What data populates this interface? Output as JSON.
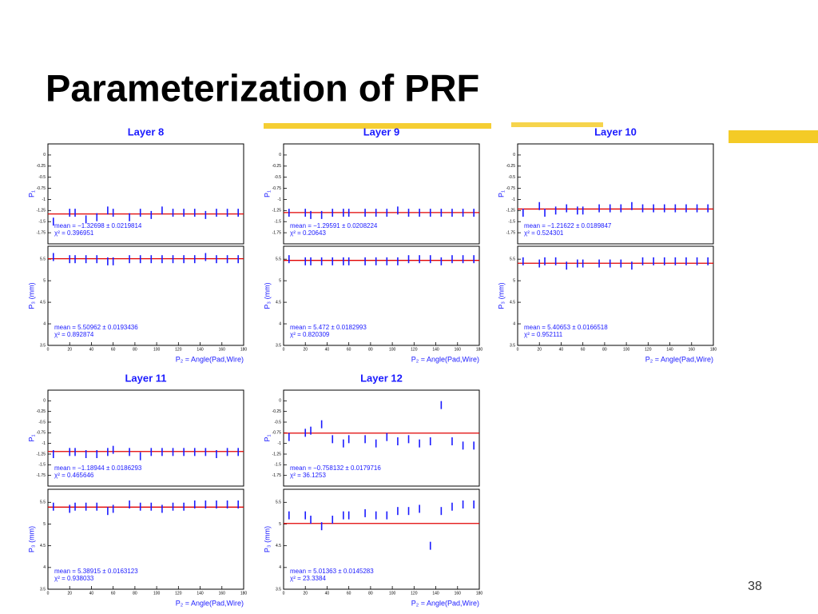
{
  "title": "Parameterization of PRF",
  "page_number": "38",
  "chart_data": [
    {
      "type": "scatter",
      "title": "Layer 8",
      "ylabel": "P₁",
      "annotations": [
        "mean = −1.32698 ± 0.0219814",
        "χ² = 0.396951"
      ],
      "fit_value": -1.32698,
      "fit_color": "#e00000",
      "color": "#1a1aff",
      "x": [
        5,
        20,
        25,
        35,
        45,
        55,
        60,
        75,
        85,
        95,
        105,
        115,
        125,
        135,
        145,
        155,
        165,
        175
      ],
      "values": [
        -1.5,
        -1.3,
        -1.3,
        -1.45,
        -1.4,
        -1.25,
        -1.3,
        -1.4,
        -1.3,
        -1.35,
        -1.25,
        -1.3,
        -1.3,
        -1.3,
        -1.35,
        -1.3,
        -1.3,
        -1.3
      ],
      "xlim": [
        0,
        180
      ],
      "ylim": [
        -2,
        0.25
      ],
      "yticks": [
        0,
        -0.25,
        -0.5,
        -0.75,
        -1,
        -1.25,
        -1.5,
        -1.75
      ]
    },
    {
      "type": "scatter",
      "ylabel": "P₃ (mm)",
      "xlabel": "P₂ = Angle(Pad,Wire)",
      "annotations": [
        "mean = 5.50962 ± 0.0193436",
        "χ² = 0.892874"
      ],
      "fit_value": 5.50962,
      "fit_color": "#e00000",
      "color": "#1a1aff",
      "x": [
        5,
        20,
        25,
        35,
        45,
        55,
        60,
        75,
        85,
        95,
        105,
        115,
        125,
        135,
        145,
        155,
        165,
        175
      ],
      "values": [
        5.55,
        5.5,
        5.5,
        5.5,
        5.5,
        5.45,
        5.45,
        5.5,
        5.5,
        5.5,
        5.5,
        5.5,
        5.5,
        5.5,
        5.55,
        5.5,
        5.5,
        5.5
      ],
      "xlim": [
        0,
        180
      ],
      "xticks": [
        0,
        20,
        40,
        60,
        80,
        100,
        120,
        140,
        160,
        180
      ],
      "ylim": [
        3.5,
        5.8
      ],
      "yticks": [
        5.5,
        5,
        4.5,
        4,
        3.5
      ]
    },
    {
      "type": "scatter",
      "title": "Layer 9",
      "ylabel": "P₁",
      "annotations": [
        "mean = −1.29591 ± 0.0208224",
        "χ² = 0.20643"
      ],
      "fit_value": -1.29591,
      "fit_color": "#e00000",
      "color": "#1a1aff",
      "x": [
        5,
        20,
        25,
        35,
        45,
        55,
        60,
        75,
        85,
        95,
        105,
        115,
        125,
        135,
        145,
        155,
        165,
        175
      ],
      "values": [
        -1.3,
        -1.3,
        -1.35,
        -1.35,
        -1.3,
        -1.3,
        -1.3,
        -1.3,
        -1.3,
        -1.3,
        -1.25,
        -1.3,
        -1.3,
        -1.3,
        -1.3,
        -1.3,
        -1.3,
        -1.3
      ],
      "xlim": [
        0,
        180
      ],
      "ylim": [
        -2,
        0.25
      ],
      "yticks": [
        0,
        -0.25,
        -0.5,
        -0.75,
        -1,
        -1.25,
        -1.5,
        -1.75
      ]
    },
    {
      "type": "scatter",
      "ylabel": "P₃ (mm)",
      "xlabel": "P₂ = Angle(Pad,Wire)",
      "annotations": [
        "mean = 5.472 ± 0.0182993",
        "χ² = 0.820309"
      ],
      "fit_value": 5.472,
      "fit_color": "#e00000",
      "color": "#1a1aff",
      "x": [
        5,
        20,
        25,
        35,
        45,
        55,
        60,
        75,
        85,
        95,
        105,
        115,
        125,
        135,
        145,
        155,
        165,
        175
      ],
      "values": [
        5.5,
        5.45,
        5.45,
        5.45,
        5.45,
        5.45,
        5.45,
        5.45,
        5.45,
        5.45,
        5.45,
        5.5,
        5.5,
        5.5,
        5.45,
        5.5,
        5.5,
        5.5
      ],
      "xlim": [
        0,
        180
      ],
      "xticks": [
        0,
        20,
        40,
        60,
        80,
        100,
        120,
        140,
        160,
        180
      ],
      "ylim": [
        3.5,
        5.8
      ],
      "yticks": [
        5.5,
        5,
        4.5,
        4,
        3.5
      ]
    },
    {
      "type": "scatter",
      "title": "Layer 10",
      "ylabel": "P₁",
      "annotations": [
        "mean = −1.21622 ± 0.0189847",
        "χ² = 0.524301"
      ],
      "fit_value": -1.21622,
      "fit_color": "#e00000",
      "color": "#1a1aff",
      "x": [
        5,
        20,
        25,
        35,
        45,
        55,
        60,
        75,
        85,
        95,
        105,
        115,
        125,
        135,
        145,
        155,
        165,
        175
      ],
      "values": [
        -1.3,
        -1.15,
        -1.3,
        -1.25,
        -1.2,
        -1.25,
        -1.25,
        -1.2,
        -1.2,
        -1.2,
        -1.15,
        -1.2,
        -1.2,
        -1.2,
        -1.2,
        -1.2,
        -1.2,
        -1.2
      ],
      "xlim": [
        0,
        180
      ],
      "ylim": [
        -2,
        0.25
      ],
      "yticks": [
        0,
        -0.25,
        -0.5,
        -0.75,
        -1,
        -1.25,
        -1.5,
        -1.75
      ]
    },
    {
      "type": "scatter",
      "ylabel": "P₃ (mm)",
      "xlabel": "P₂ = Angle(Pad,Wire)",
      "annotations": [
        "mean = 5.40653 ± 0.0166518",
        "χ² = 0.952111"
      ],
      "fit_value": 5.40653,
      "fit_color": "#e00000",
      "color": "#1a1aff",
      "x": [
        5,
        20,
        25,
        35,
        45,
        55,
        60,
        75,
        85,
        95,
        105,
        115,
        125,
        135,
        145,
        155,
        165,
        175
      ],
      "values": [
        5.45,
        5.4,
        5.45,
        5.45,
        5.35,
        5.4,
        5.4,
        5.4,
        5.4,
        5.4,
        5.35,
        5.45,
        5.45,
        5.45,
        5.45,
        5.45,
        5.45,
        5.45
      ],
      "xlim": [
        0,
        180
      ],
      "xticks": [
        0,
        20,
        40,
        60,
        80,
        100,
        120,
        140,
        160,
        180
      ],
      "ylim": [
        3.5,
        5.8
      ],
      "yticks": [
        5.5,
        5,
        4.5,
        4,
        3.5
      ]
    },
    {
      "type": "scatter",
      "title": "Layer 11",
      "ylabel": "P₁",
      "annotations": [
        "mean = −1.18944 ± 0.0186293",
        "χ² = 0.465646"
      ],
      "fit_value": -1.18944,
      "fit_color": "#e00000",
      "color": "#1a1aff",
      "x": [
        5,
        20,
        25,
        35,
        45,
        55,
        60,
        75,
        85,
        95,
        105,
        115,
        125,
        135,
        145,
        155,
        165,
        175
      ],
      "values": [
        -1.25,
        -1.2,
        -1.2,
        -1.25,
        -1.25,
        -1.2,
        -1.15,
        -1.2,
        -1.3,
        -1.2,
        -1.2,
        -1.2,
        -1.2,
        -1.2,
        -1.2,
        -1.25,
        -1.2,
        -1.2
      ],
      "xlim": [
        0,
        180
      ],
      "ylim": [
        -2,
        0.25
      ],
      "yticks": [
        0,
        -0.25,
        -0.5,
        -0.75,
        -1,
        -1.25,
        -1.5,
        -1.75
      ]
    },
    {
      "type": "scatter",
      "ylabel": "P₃ (mm)",
      "xlabel": "P₂ = Angle(Pad,Wire)",
      "annotations": [
        "mean = 5.38915 ± 0.0163123",
        "χ² = 0.938033"
      ],
      "fit_value": 5.38915,
      "fit_color": "#e00000",
      "color": "#1a1aff",
      "x": [
        5,
        20,
        25,
        35,
        45,
        55,
        60,
        75,
        85,
        95,
        105,
        115,
        125,
        135,
        145,
        155,
        165,
        175
      ],
      "values": [
        5.4,
        5.35,
        5.4,
        5.4,
        5.4,
        5.3,
        5.35,
        5.45,
        5.4,
        5.4,
        5.35,
        5.4,
        5.4,
        5.45,
        5.45,
        5.45,
        5.45,
        5.45
      ],
      "xlim": [
        0,
        180
      ],
      "xticks": [
        0,
        20,
        40,
        60,
        80,
        100,
        120,
        140,
        160,
        180
      ],
      "ylim": [
        3.5,
        5.8
      ],
      "yticks": [
        5.5,
        5,
        4.5,
        4,
        3.5
      ]
    },
    {
      "type": "scatter",
      "title": "Layer 12",
      "ylabel": "P₁",
      "annotations": [
        "mean = −0.758132 ± 0.0179716",
        "χ² = 36.1253"
      ],
      "fit_value": -0.758132,
      "fit_color": "#e00000",
      "color": "#1a1aff",
      "x": [
        5,
        20,
        25,
        35,
        45,
        55,
        60,
        75,
        85,
        95,
        105,
        115,
        125,
        135,
        145,
        155,
        165,
        175
      ],
      "values": [
        -0.85,
        -0.75,
        -0.7,
        -0.55,
        -0.9,
        -1.0,
        -0.9,
        -0.9,
        -1.0,
        -0.85,
        -0.95,
        -0.9,
        -1.0,
        -0.95,
        -0.1,
        -0.95,
        -1.05,
        -1.05
      ],
      "xlim": [
        0,
        180
      ],
      "ylim": [
        -2,
        0.25
      ],
      "yticks": [
        0,
        -0.25,
        -0.5,
        -0.75,
        -1,
        -1.25,
        -1.5,
        -1.75
      ]
    },
    {
      "type": "scatter",
      "ylabel": "P₃ (mm)",
      "xlabel": "P₂ = Angle(Pad,Wire)",
      "annotations": [
        "mean = 5.01363 ± 0.0145283",
        "χ² = 23.3384"
      ],
      "fit_value": 5.01363,
      "fit_color": "#e00000",
      "color": "#1a1aff",
      "x": [
        5,
        20,
        25,
        35,
        45,
        55,
        60,
        75,
        85,
        95,
        105,
        115,
        125,
        135,
        145,
        155,
        165,
        175
      ],
      "values": [
        5.2,
        5.2,
        5.1,
        4.95,
        5.1,
        5.2,
        5.2,
        5.25,
        5.2,
        5.2,
        5.3,
        5.3,
        5.35,
        4.5,
        5.3,
        5.4,
        5.45,
        5.45
      ],
      "xlim": [
        0,
        180
      ],
      "xticks": [
        0,
        20,
        40,
        60,
        80,
        100,
        120,
        140,
        160,
        180
      ],
      "ylim": [
        3.5,
        5.8
      ],
      "yticks": [
        5.5,
        5,
        4.5,
        4,
        3.5
      ]
    }
  ]
}
